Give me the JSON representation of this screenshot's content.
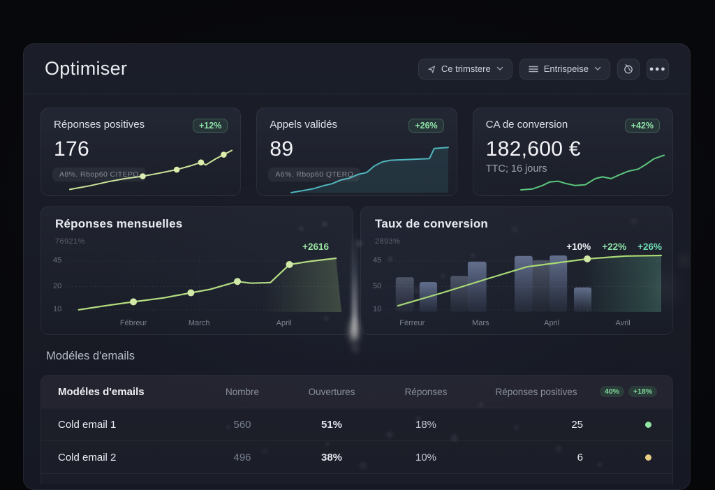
{
  "page": {
    "title": "Optimiser"
  },
  "header": {
    "period_button": {
      "label": "Ce trimstere"
    },
    "org_button": {
      "label": "Entrispeise"
    }
  },
  "kpi_cards": [
    {
      "title": "Réponses positives",
      "badge": "+12%",
      "value": "176",
      "sublabel": "A8%. Rbop60 CITEPO",
      "spark": {
        "color": "#cbe49a",
        "dot_color": "#dcedad",
        "area": false,
        "points": [
          [
            0,
            97
          ],
          [
            12,
            91
          ],
          [
            24,
            84
          ],
          [
            34,
            79
          ],
          [
            45,
            75
          ],
          [
            55,
            70
          ],
          [
            66,
            64
          ],
          [
            74,
            58
          ],
          [
            81,
            52
          ],
          [
            84,
            56
          ],
          [
            90,
            46
          ],
          [
            95,
            39
          ],
          [
            100,
            32
          ]
        ],
        "dots": [
          4,
          6,
          8,
          11
        ]
      }
    },
    {
      "title": "Appels validés",
      "badge": "+26%",
      "value": "89",
      "sublabel": "A6%. Rbop60 QTERQ",
      "spark": {
        "color": "#4fb5bd",
        "dot_color": "#bfe8ea",
        "area": true,
        "points": [
          [
            0,
            100
          ],
          [
            8,
            96
          ],
          [
            14,
            93
          ],
          [
            20,
            88
          ],
          [
            26,
            84
          ],
          [
            32,
            77
          ],
          [
            37,
            74
          ],
          [
            43,
            67
          ],
          [
            48,
            64
          ],
          [
            53,
            52
          ],
          [
            58,
            45
          ],
          [
            63,
            42
          ],
          [
            88,
            39
          ],
          [
            91,
            21
          ],
          [
            100,
            19
          ]
        ],
        "dots": []
      }
    },
    {
      "title": "CA de conversion",
      "badge": "+42%",
      "value": "182,600 €",
      "sublabel": "TTC; 16 jours",
      "spark": {
        "color": "#5cc77e",
        "dot_color": "#bfe9cb",
        "area": false,
        "points": [
          [
            0,
            100
          ],
          [
            8,
            98
          ],
          [
            15,
            90
          ],
          [
            20,
            82
          ],
          [
            26,
            80
          ],
          [
            31,
            85
          ],
          [
            38,
            90
          ],
          [
            45,
            88
          ],
          [
            52,
            74
          ],
          [
            57,
            70
          ],
          [
            63,
            74
          ],
          [
            69,
            65
          ],
          [
            75,
            57
          ],
          [
            82,
            52
          ],
          [
            87,
            42
          ],
          [
            93,
            28
          ],
          [
            100,
            20
          ]
        ],
        "dots": []
      }
    }
  ],
  "chart_data": [
    {
      "type": "line",
      "title": "Réponses mensuelles",
      "axis_note": "76921%",
      "annotation": "+2616",
      "annotation_color": "#9ce79f",
      "yticks": [
        "45",
        "20",
        "10"
      ],
      "xticks": [
        "Fébreur",
        "March",
        "April"
      ],
      "categories": [
        "Fébreur",
        "March",
        "April"
      ],
      "values_est": [
        13,
        18,
        43
      ],
      "start_value": 10,
      "end_value": 46,
      "ylim": [
        10,
        50
      ],
      "grid": "dotted",
      "line_color": "#b6de80",
      "render": {
        "ytick_pos": [
          10,
          55,
          96
        ],
        "xtick_pos": [
          24,
          48,
          79
        ],
        "vline_pos": [
          24,
          48,
          79
        ],
        "points": [
          [
            4,
            96
          ],
          [
            15,
            88
          ],
          [
            24,
            82
          ],
          [
            35,
            75
          ],
          [
            45,
            66
          ],
          [
            52,
            60
          ],
          [
            62,
            46
          ],
          [
            67,
            49
          ],
          [
            74,
            48
          ],
          [
            81,
            16
          ],
          [
            89,
            10
          ],
          [
            98,
            5
          ]
        ],
        "dots": [
          2,
          4,
          6,
          9
        ],
        "dot_color": "#d3eba6",
        "area": {
          "from": "rgba(182,222,128,0)",
          "to": "rgba(182,222,128,0.22)"
        }
      }
    },
    {
      "type": "bar+line",
      "title": "Taux de conversion",
      "axis_note": "2893%",
      "annotations": [
        {
          "text": "+10%",
          "color": "#e9ebee"
        },
        {
          "text": "+22%",
          "color": "#8de4a7"
        },
        {
          "text": "+26%",
          "color": "#6fdcb4"
        }
      ],
      "yticks": [
        "45",
        "50",
        "10"
      ],
      "xticks": [
        "Férreur",
        "Mars",
        "April",
        "Avril"
      ],
      "categories": [
        "Férreur",
        "Mars",
        "April",
        "Avril"
      ],
      "bar_heights_pct": [
        61,
        53,
        64,
        89,
        99,
        92,
        100,
        43
      ],
      "line_values_pct": [
        11,
        34,
        58,
        80,
        94,
        99,
        100
      ],
      "grid": "dotted",
      "line_color": "#a9d973",
      "render": {
        "ytick_pos": [
          10,
          55,
          96
        ],
        "xtick_pos": [
          9,
          34,
          60,
          86
        ],
        "bars": [
          {
            "x": 3,
            "w": 6.6,
            "y": 38.5,
            "s": "light"
          },
          {
            "x": 11.7,
            "w": 6.4,
            "y": 47,
            "s": "blue"
          },
          {
            "x": 23,
            "w": 6.4,
            "y": 36,
            "s": "light"
          },
          {
            "x": 29.3,
            "w": 6.8,
            "y": 11,
            "s": "blue"
          },
          {
            "x": 46.4,
            "w": 6.6,
            "y": 1,
            "s": "blue"
          },
          {
            "x": 53,
            "w": 6.2,
            "y": 8.5,
            "s": "light"
          },
          {
            "x": 59.2,
            "w": 6.4,
            "y": 0,
            "s": "blue"
          },
          {
            "x": 68.1,
            "w": 6.4,
            "y": 56.6,
            "s": "blue"
          }
        ],
        "points": [
          [
            3.8,
            89
          ],
          [
            20,
            66
          ],
          [
            36,
            42
          ],
          [
            51,
            20
          ],
          [
            73,
            6
          ],
          [
            87,
            1
          ],
          [
            100,
            0
          ]
        ],
        "dots": [
          4
        ],
        "dot_color": "#d3eba6",
        "area": {
          "from": "rgba(110,210,170,0)",
          "to": "rgba(110,210,170,0.25)"
        }
      }
    }
  ],
  "emails_section": {
    "title": "Modéles d'emails"
  },
  "table": {
    "columns": [
      "Modéles d'emails",
      "Nombre",
      "Ouvertures",
      "Réponses",
      "Réponses positives"
    ],
    "header_badges": [
      "40%",
      "+18%"
    ],
    "rows": [
      {
        "name": "Cold email 1",
        "nombre": "560",
        "ouvertures": "51%",
        "reponses": "18%",
        "positives": "25",
        "status_color": "#90e6a3"
      },
      {
        "name": "Cold email 2",
        "nombre": "496",
        "ouvertures": "38%",
        "reponses": "10%",
        "positives": "6",
        "status_color": "#e9cd84"
      }
    ]
  }
}
